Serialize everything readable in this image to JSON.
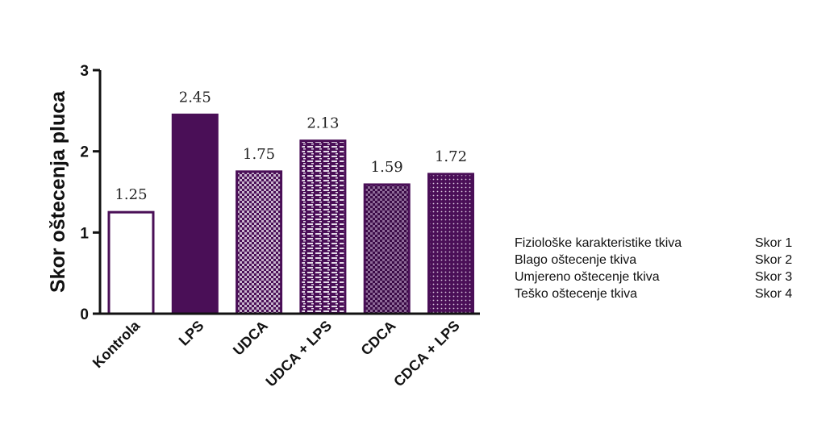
{
  "chart_data": {
    "type": "bar",
    "categories": [
      "Kontrola",
      "LPS",
      "UDCA",
      "UDCA + LPS",
      "CDCA",
      "CDCA + LPS"
    ],
    "values": [
      1.25,
      2.45,
      1.75,
      2.13,
      1.59,
      1.72
    ],
    "value_labels": [
      "1.25",
      "2.45",
      "1.75",
      "2.13",
      "1.59",
      "1.72"
    ],
    "ylabel": "Skor oštecenja pluca",
    "xlabel": "",
    "ylim": [
      0,
      3
    ],
    "yticks": [
      "0",
      "1",
      "2",
      "3"
    ],
    "grid": false,
    "bar_styles": [
      "outline",
      "solid",
      "pattern-checker-light",
      "pattern-brick",
      "pattern-checker-dark",
      "pattern-dots"
    ],
    "colors": {
      "bar_main": "#4a0f57",
      "bar_light": "#ffffff",
      "axis": "#111111"
    }
  },
  "legend": [
    {
      "text": "Fiziološke karakteristike tkiva",
      "score": "Skor 1"
    },
    {
      "text": "Blago oštecenje tkiva",
      "score": "Skor 2"
    },
    {
      "text": "Umjereno oštecenje tkiva",
      "score": "Skor 3"
    },
    {
      "text": "Teško oštecenje tkiva",
      "score": "Skor 4"
    }
  ]
}
